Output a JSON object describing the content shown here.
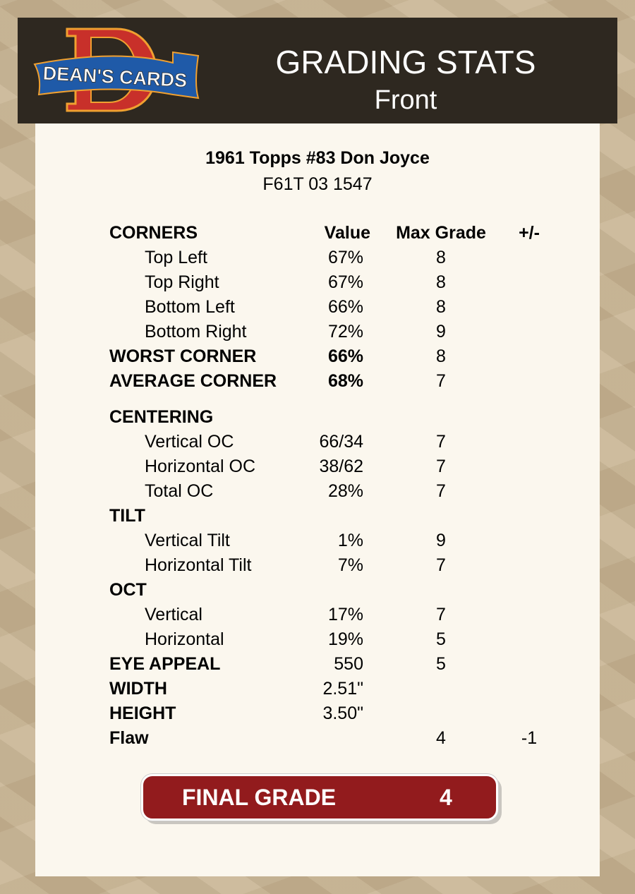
{
  "header": {
    "logo_text": "DEAN'S CARDS",
    "title": "GRADING STATS",
    "subtitle": "Front"
  },
  "card": {
    "name": "1961 Topps #83 Don Joyce",
    "id": "F61T 03 1547"
  },
  "columns": {
    "label": "CORNERS",
    "value": "Value",
    "max": "Max Grade",
    "pm": "+/-"
  },
  "rows": [
    {
      "label": "Top Left",
      "value": "67%",
      "max": "8",
      "pm": "",
      "style": "sub"
    },
    {
      "label": "Top Right",
      "value": "67%",
      "max": "8",
      "pm": "",
      "style": "sub"
    },
    {
      "label": "Bottom Left",
      "value": "66%",
      "max": "8",
      "pm": "",
      "style": "sub"
    },
    {
      "label": "Bottom Right",
      "value": "72%",
      "max": "9",
      "pm": "",
      "style": "sub"
    },
    {
      "label": "WORST CORNER",
      "value": "66%",
      "max": "8",
      "pm": "",
      "style": "bold"
    },
    {
      "label": "AVERAGE CORNER",
      "value": "68%",
      "max": "7",
      "pm": "",
      "style": "bold"
    },
    {
      "label": "CENTERING",
      "value": "",
      "max": "",
      "pm": "",
      "style": "bold gap"
    },
    {
      "label": "Vertical OC",
      "value": "66/34",
      "max": "7",
      "pm": "",
      "style": "sub"
    },
    {
      "label": "Horizontal OC",
      "value": "38/62",
      "max": "7",
      "pm": "",
      "style": "sub"
    },
    {
      "label": "Total OC",
      "value": "28%",
      "max": "7",
      "pm": "",
      "style": "sub"
    },
    {
      "label": "TILT",
      "value": "",
      "max": "",
      "pm": "",
      "style": "bold"
    },
    {
      "label": "Vertical Tilt",
      "value": "1%",
      "max": "9",
      "pm": "",
      "style": "sub"
    },
    {
      "label": "Horizontal Tilt",
      "value": "7%",
      "max": "7",
      "pm": "",
      "style": "sub"
    },
    {
      "label": "OCT",
      "value": "",
      "max": "",
      "pm": "",
      "style": "bold"
    },
    {
      "label": "Vertical",
      "value": "17%",
      "max": "7",
      "pm": "",
      "style": "sub"
    },
    {
      "label": "Horizontal",
      "value": "19%",
      "max": "5",
      "pm": "",
      "style": "sub"
    },
    {
      "label": "EYE APPEAL",
      "value": "550",
      "max": "5",
      "pm": "",
      "style": "lbold"
    },
    {
      "label": "WIDTH",
      "value": "2.51\"",
      "max": "",
      "pm": "",
      "style": "lbold"
    },
    {
      "label": "HEIGHT",
      "value": "3.50\"",
      "max": "",
      "pm": "",
      "style": "lbold"
    },
    {
      "label": "Flaw",
      "value": "",
      "max": "4",
      "pm": "-1",
      "style": "lbold"
    }
  ],
  "final": {
    "label": "FINAL GRADE",
    "value": "4"
  },
  "colors": {
    "header_bg": "#2e2820",
    "panel_bg": "#fbf7ee",
    "final_bg": "#921b1d",
    "logo_red": "#c8302a",
    "logo_blue": "#1f5aa8"
  }
}
